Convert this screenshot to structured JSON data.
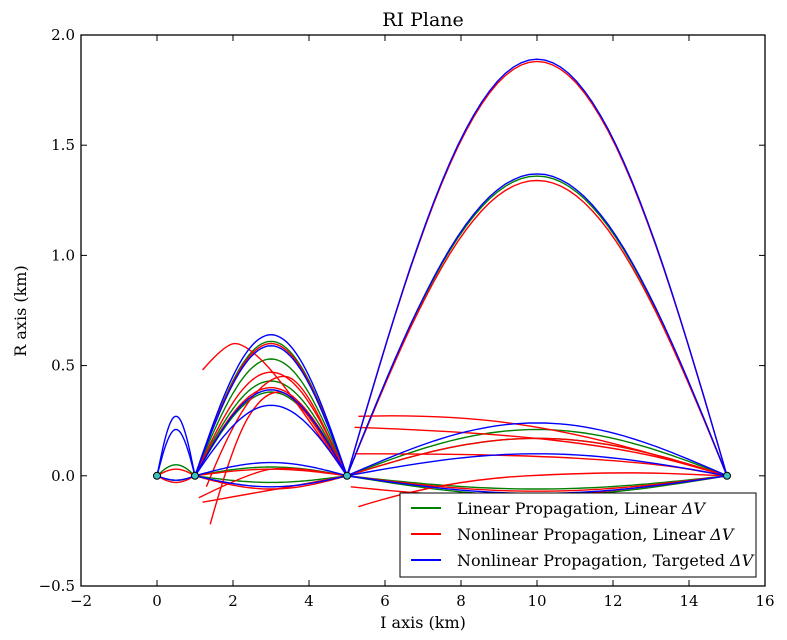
{
  "chart_data": {
    "type": "line",
    "title": "RI Plane",
    "xlabel": "I axis (km)",
    "ylabel": "R axis (km)",
    "xlim": [
      -2,
      16
    ],
    "ylim": [
      -0.5,
      2.0
    ],
    "xticks": [
      -2,
      0,
      2,
      4,
      6,
      8,
      10,
      12,
      14,
      16
    ],
    "xtick_labels": [
      "−2",
      "0",
      "2",
      "4",
      "6",
      "8",
      "10",
      "12",
      "14",
      "16"
    ],
    "yticks": [
      -0.5,
      0.0,
      0.5,
      1.0,
      1.5,
      2.0
    ],
    "ytick_labels": [
      "−0.5",
      "0.0",
      "0.5",
      "1.0",
      "1.5",
      "2.0"
    ],
    "grid": false,
    "legend_position": "lower-right",
    "waypoints": [
      [
        0,
        0
      ],
      [
        1,
        0
      ],
      [
        5,
        0
      ],
      [
        15,
        0
      ]
    ],
    "series": [
      {
        "name": "Linear Propagation, Linear ΔV",
        "name_main": "Linear Propagation, Linear ",
        "name_symbol": "ΔV",
        "color": "#007f00",
        "arcs": [
          {
            "from": [
              0,
              0
            ],
            "to": [
              1,
              0
            ],
            "peak": 0.05
          },
          {
            "from": [
              0,
              0
            ],
            "to": [
              1,
              0
            ],
            "peak": -0.02
          },
          {
            "from": [
              1,
              0
            ],
            "to": [
              5,
              0
            ],
            "peak": 0.61
          },
          {
            "from": [
              1,
              0
            ],
            "to": [
              5,
              0
            ],
            "peak": 0.53
          },
          {
            "from": [
              1,
              0
            ],
            "to": [
              5,
              0
            ],
            "peak": 0.43
          },
          {
            "from": [
              1,
              0
            ],
            "to": [
              5,
              0
            ],
            "peak": 0.38
          },
          {
            "from": [
              1,
              0
            ],
            "to": [
              5,
              0
            ],
            "peak": 0.04
          },
          {
            "from": [
              1,
              0
            ],
            "to": [
              5,
              0
            ],
            "peak": -0.03
          },
          {
            "from": [
              5,
              0
            ],
            "to": [
              15,
              0
            ],
            "peak": 1.36
          },
          {
            "from": [
              5,
              0
            ],
            "to": [
              15,
              0
            ],
            "peak": 0.21
          },
          {
            "from": [
              5,
              0
            ],
            "to": [
              15,
              0
            ],
            "peak": 0.17
          },
          {
            "from": [
              5,
              0
            ],
            "to": [
              15,
              0
            ],
            "peak": -0.06
          },
          {
            "from": [
              5,
              0
            ],
            "to": [
              15,
              0
            ],
            "peak": -0.09
          }
        ]
      },
      {
        "name": "Nonlinear Propagation, Linear ΔV",
        "name_main": "Nonlinear Propagation, Linear ",
        "name_symbol": "ΔV",
        "color": "#ff0000",
        "arcs": [
          {
            "from": [
              0,
              0
            ],
            "to": [
              1,
              0
            ],
            "peak": 0.03
          },
          {
            "from": [
              0,
              0
            ],
            "to": [
              1,
              0
            ],
            "peak": -0.03
          },
          {
            "from": [
              1,
              0
            ],
            "to": [
              5,
              0
            ],
            "peak": 0.6
          },
          {
            "from": [
              1,
              0
            ],
            "to": [
              5,
              0
            ],
            "peak": 0.47
          },
          {
            "from": [
              1,
              0
            ],
            "to": [
              5,
              0
            ],
            "peak": 0.4
          },
          {
            "from": [
              1,
              0
            ],
            "to": [
              5,
              0
            ],
            "peak": 0.03
          },
          {
            "from": [
              1,
              0
            ],
            "to": [
              5,
              0
            ],
            "peak": -0.06
          },
          {
            "from": [
              5,
              0
            ],
            "to": [
              15,
              0
            ],
            "peak": 1.88
          },
          {
            "from": [
              5,
              0
            ],
            "to": [
              15,
              0
            ],
            "peak": 1.34
          },
          {
            "from": [
              5,
              0
            ],
            "to": [
              15,
              0
            ],
            "peak": 0.17
          },
          {
            "from": [
              5,
              0
            ],
            "to": [
              15,
              0
            ],
            "peak": -0.07
          }
        ],
        "branches": [
          [
            [
              1.2,
              0.48
            ],
            [
              1.8,
              0.6
            ],
            [
              2.3,
              0.6
            ],
            [
              3.2,
              0.45
            ],
            [
              5,
              0
            ]
          ],
          [
            [
              1.3,
              -0.05
            ],
            [
              2.0,
              0.25
            ],
            [
              3.0,
              0.46
            ],
            [
              3.8,
              0.44
            ],
            [
              5,
              0
            ]
          ],
          [
            [
              1.4,
              -0.22
            ],
            [
              2.0,
              0.15
            ],
            [
              2.8,
              0.38
            ],
            [
              3.6,
              0.38
            ],
            [
              5,
              0
            ]
          ],
          [
            [
              1.1,
              -0.1
            ],
            [
              2.5,
              0.02
            ],
            [
              3.5,
              0.04
            ],
            [
              5,
              0
            ]
          ],
          [
            [
              1.2,
              -0.12
            ],
            [
              2.5,
              -0.08
            ],
            [
              3.8,
              -0.04
            ],
            [
              5,
              0
            ]
          ],
          [
            [
              5.3,
              0.27
            ],
            [
              7.5,
              0.28
            ],
            [
              11,
              0.2
            ],
            [
              15,
              0
            ]
          ],
          [
            [
              5.2,
              0.22
            ],
            [
              8.5,
              0.2
            ],
            [
              12.5,
              0.12
            ],
            [
              15,
              0
            ]
          ],
          [
            [
              5.2,
              0.1
            ],
            [
              9,
              0.1
            ],
            [
              13,
              0.06
            ],
            [
              15,
              0
            ]
          ],
          [
            [
              5.3,
              -0.14
            ],
            [
              7.5,
              -0.02
            ],
            [
              12,
              0.02
            ],
            [
              15,
              0
            ]
          ],
          [
            [
              5.1,
              -0.05
            ],
            [
              9,
              -0.12
            ],
            [
              13,
              -0.05
            ],
            [
              15,
              0
            ]
          ]
        ]
      },
      {
        "name": "Nonlinear Propagation, Targeted ΔV",
        "name_main": "Nonlinear Propagation, Targeted ",
        "name_symbol": "ΔV",
        "color": "#0000ff",
        "arcs": [
          {
            "from": [
              0,
              0
            ],
            "to": [
              1,
              0
            ],
            "peak": 0.27
          },
          {
            "from": [
              0,
              0
            ],
            "to": [
              1,
              0
            ],
            "peak": 0.21
          },
          {
            "from": [
              0,
              0
            ],
            "to": [
              1,
              0
            ],
            "peak": -0.02
          },
          {
            "from": [
              1,
              0
            ],
            "to": [
              5,
              0
            ],
            "peak": 0.64
          },
          {
            "from": [
              1,
              0
            ],
            "to": [
              5,
              0
            ],
            "peak": 0.59
          },
          {
            "from": [
              1,
              0
            ],
            "to": [
              5,
              0
            ],
            "peak": 0.39
          },
          {
            "from": [
              1,
              0
            ],
            "to": [
              5,
              0
            ],
            "peak": 0.32
          },
          {
            "from": [
              1,
              0
            ],
            "to": [
              5,
              0
            ],
            "peak": 0.06
          },
          {
            "from": [
              1,
              0
            ],
            "to": [
              5,
              0
            ],
            "peak": -0.05
          },
          {
            "from": [
              5,
              0
            ],
            "to": [
              15,
              0
            ],
            "peak": 1.89
          },
          {
            "from": [
              5,
              0
            ],
            "to": [
              15,
              0
            ],
            "peak": 1.37
          },
          {
            "from": [
              5,
              0
            ],
            "to": [
              15,
              0
            ],
            "peak": 0.24
          },
          {
            "from": [
              5,
              0
            ],
            "to": [
              15,
              0
            ],
            "peak": 0.1
          },
          {
            "from": [
              5,
              0
            ],
            "to": [
              15,
              0
            ],
            "peak": -0.08
          }
        ]
      }
    ]
  }
}
